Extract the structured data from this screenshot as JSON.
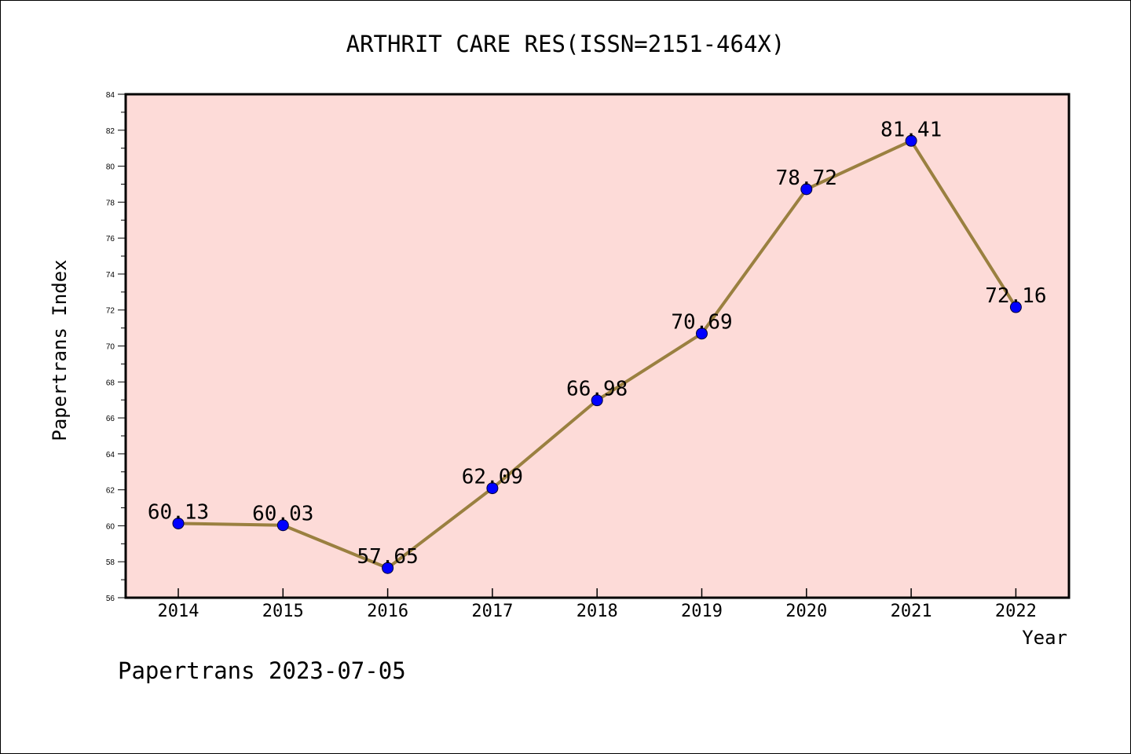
{
  "chart_data": {
    "type": "line",
    "title": "ARTHRIT CARE RES(ISSN=2151-464X)",
    "xlabel": "Year",
    "ylabel": "Papertrans Index",
    "categories": [
      "2014",
      "2015",
      "2016",
      "2017",
      "2018",
      "2019",
      "2020",
      "2021",
      "2022"
    ],
    "values": [
      60.13,
      60.03,
      57.65,
      62.09,
      66.98,
      70.69,
      78.72,
      81.41,
      72.16
    ],
    "data_labels": [
      "60.13",
      "60.03",
      "57.65",
      "62.09",
      "66.98",
      "70.69",
      "78.72",
      "81.41",
      "72.16"
    ],
    "ylim": [
      56,
      84
    ],
    "y_ticks": [
      "56",
      "58",
      "60",
      "62",
      "64",
      "66",
      "68",
      "70",
      "72",
      "74",
      "76",
      "78",
      "80",
      "82",
      "84"
    ],
    "grid": false,
    "legend": "none",
    "colors": {
      "plot_background": "#fddbd8",
      "line": "#9a8040",
      "marker": "#0000ff"
    }
  },
  "footer": {
    "text": "Papertrans 2023-07-05"
  }
}
